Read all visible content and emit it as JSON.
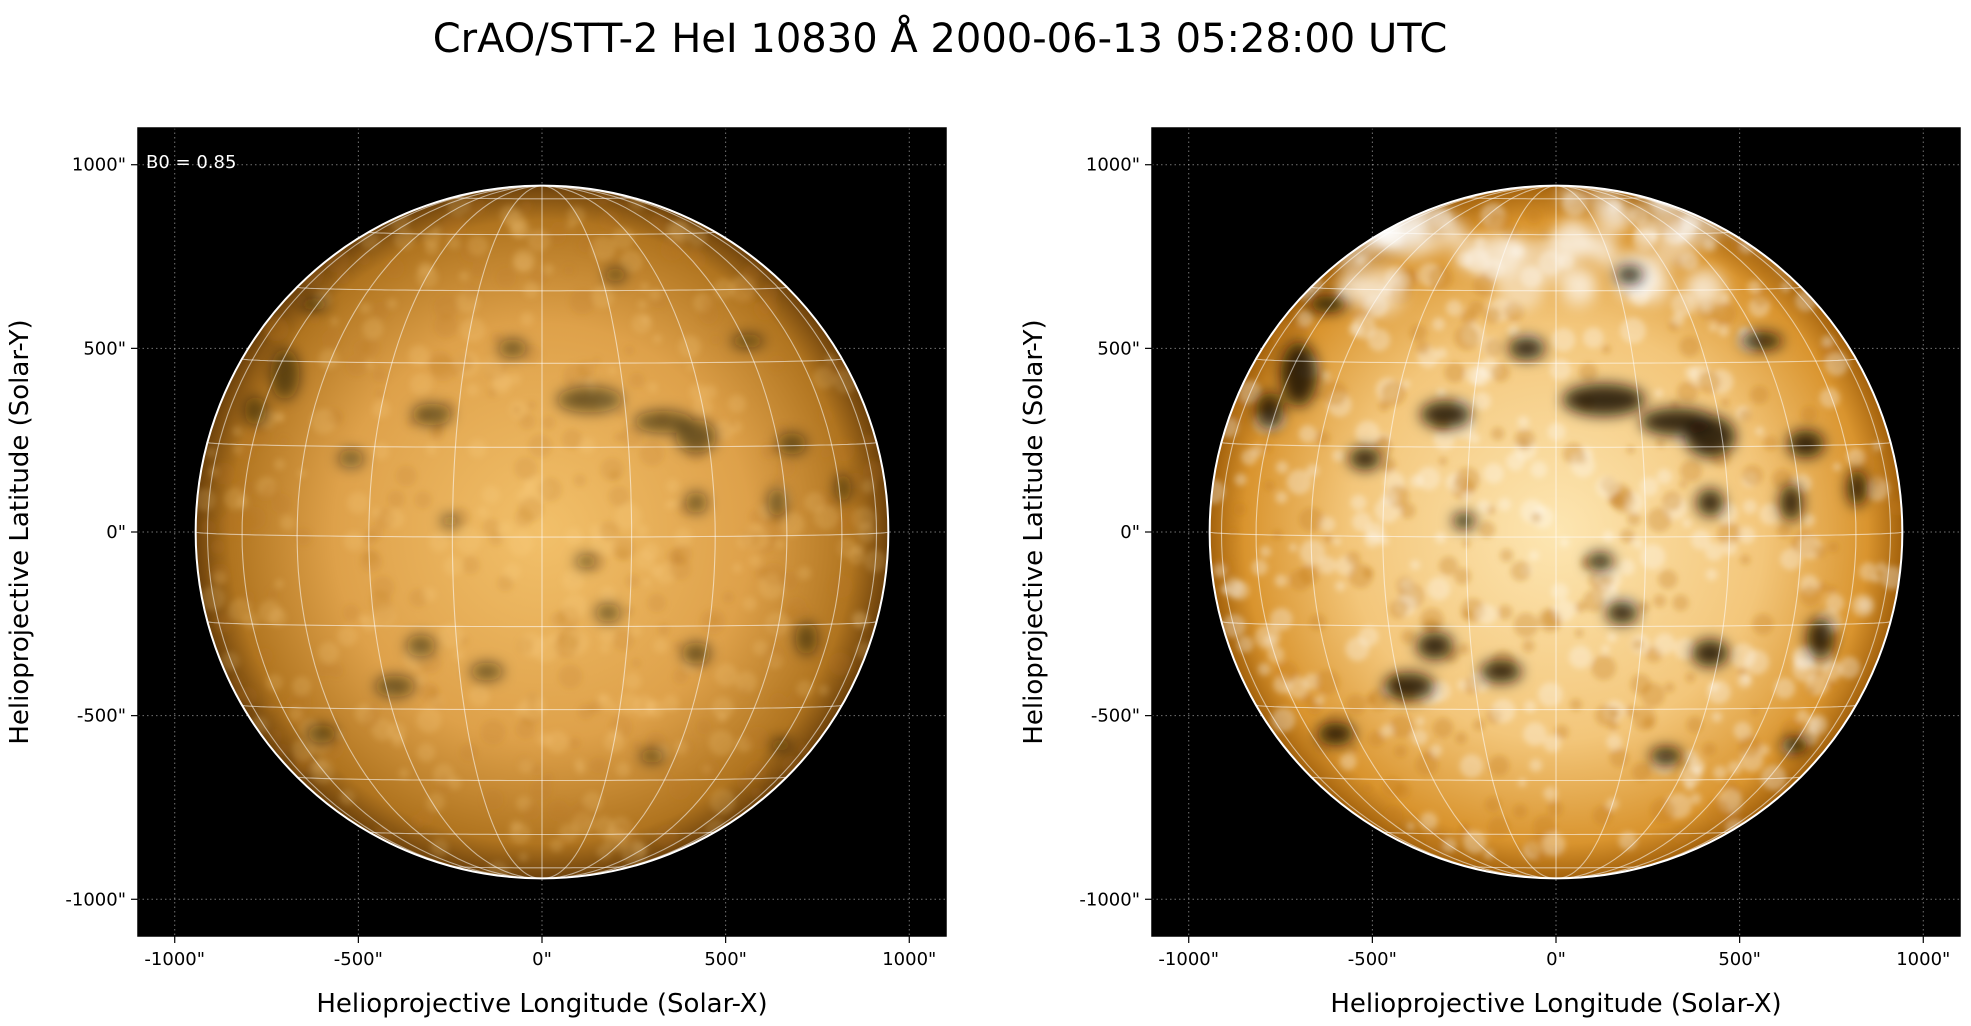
{
  "figure": {
    "title": "CrAO/STT-2 HeI 10830 Å 2000-06-13 05:28:00 UTC"
  },
  "panels": [
    {
      "id": "left",
      "xlabel": "Helioprojective Longitude (Solar-X)",
      "ylabel": "Helioprojective Latitude (Solar-Y)",
      "xticks": [
        "-1000\"",
        "-500\"",
        "0\"",
        "500\"",
        "1000\""
      ],
      "yticks": [
        "1000\"",
        "500\"",
        "0\"",
        "-500\"",
        "-1000\""
      ],
      "annotation": "B0 = 0.85",
      "contrast": "normal"
    },
    {
      "id": "right",
      "xlabel": "Helioprojective Longitude (Solar-X)",
      "ylabel": "Helioprojective Latitude (Solar-Y)",
      "xticks": [
        "-1000\"",
        "-500\"",
        "0\"",
        "500\"",
        "1000\""
      ],
      "yticks": [
        "1000\"",
        "500\"",
        "0\"",
        "-500\"",
        "-1000\""
      ],
      "annotation": "",
      "contrast": "enhanced"
    }
  ],
  "axis_range_arcsec": {
    "x": [
      -1100,
      1100
    ],
    "y": [
      -1100,
      1100
    ]
  },
  "tick_values_arcsec": [
    -1000,
    -500,
    0,
    500,
    1000
  ],
  "solar_radius_arcsec": 943,
  "b0_deg": 0.85,
  "grid_spacing_deg": 15,
  "colors": {
    "background": "#000000",
    "disk_left_center": "#f0b456",
    "disk_left_edge": "#7a4a0c",
    "disk_right_center": "#fde2a6",
    "disk_right_edge": "#b56d10",
    "dark_feature": "#1a0c00",
    "grid_line": "#ffffff",
    "limb": "#ffffff"
  },
  "icons": [
    "solar-disk"
  ]
}
